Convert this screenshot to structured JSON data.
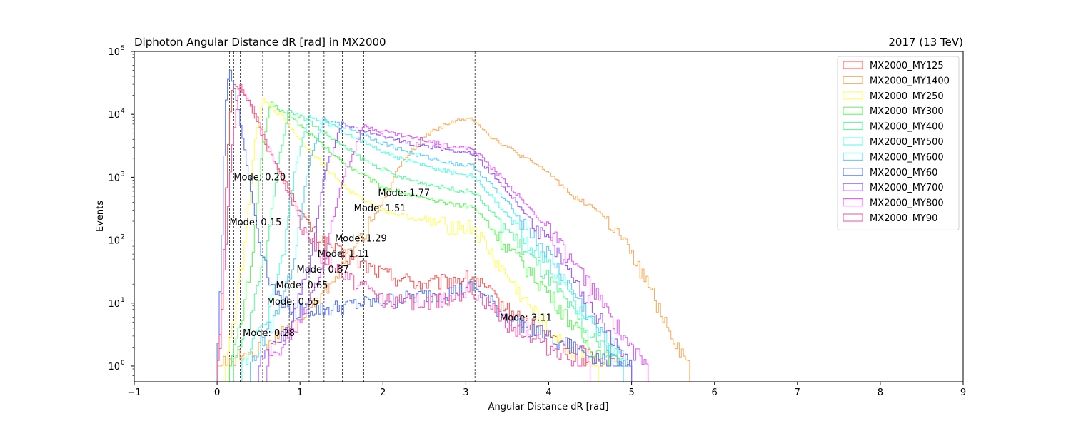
{
  "chart_data": {
    "type": "line",
    "title": "Diphoton Angular Distance dR [rad] in MX2000",
    "subtitle": "2017 (13 TeV)",
    "xlabel": "Angular Distance dR [rad]",
    "ylabel": "Events",
    "xlim": [
      -1,
      9
    ],
    "ylim_log10": [
      -0.25,
      5.0
    ],
    "y_scale": "log",
    "x_ticks": [
      "−1",
      "0",
      "1",
      "2",
      "3",
      "4",
      "5",
      "6",
      "7",
      "8",
      "9"
    ],
    "x_tick_values": [
      -1,
      0,
      1,
      2,
      3,
      4,
      5,
      6,
      7,
      8,
      9
    ],
    "x_extra_tick": "0",
    "y_ticks": [
      {
        "base": "10",
        "exp": "0",
        "value": 1
      },
      {
        "base": "10",
        "exp": "1",
        "value": 10
      },
      {
        "base": "10",
        "exp": "2",
        "value": 100
      },
      {
        "base": "10",
        "exp": "3",
        "value": 1000
      },
      {
        "base": "10",
        "exp": "4",
        "value": 10000
      },
      {
        "base": "10",
        "exp": "5",
        "value": 100000
      }
    ],
    "legend_position": "top-right",
    "series": [
      {
        "name": "MX2000_MY125",
        "color": "#ff5a5a",
        "peak": 0.2,
        "peak_val": 33000,
        "profile": [
          [
            0,
            1
          ],
          [
            0.05,
            3
          ],
          [
            0.1,
            300
          ],
          [
            0.15,
            8000
          ],
          [
            0.2,
            33000
          ],
          [
            0.4,
            15000
          ],
          [
            0.6,
            3000
          ],
          [
            0.8,
            1000
          ],
          [
            1.0,
            300
          ],
          [
            1.2,
            120
          ],
          [
            1.5,
            60
          ],
          [
            2.0,
            30
          ],
          [
            2.5,
            20
          ],
          [
            3.0,
            25
          ],
          [
            3.1,
            25
          ],
          [
            3.5,
            8
          ],
          [
            4.0,
            3
          ],
          [
            4.5,
            1.5
          ],
          [
            5.0,
            1
          ]
        ]
      },
      {
        "name": "MX2000_MY1400",
        "color": "#ffae5a",
        "peak": 3.11,
        "peak_val": 8500,
        "profile": [
          [
            0,
            1
          ],
          [
            0.5,
            2
          ],
          [
            1.0,
            5
          ],
          [
            1.3,
            15
          ],
          [
            1.6,
            60
          ],
          [
            1.8,
            150
          ],
          [
            2.0,
            400
          ],
          [
            2.2,
            1500
          ],
          [
            2.5,
            4500
          ],
          [
            2.8,
            7500
          ],
          [
            3.0,
            8200
          ],
          [
            3.1,
            8500
          ],
          [
            3.3,
            4500
          ],
          [
            3.6,
            2500
          ],
          [
            4.0,
            1200
          ],
          [
            4.3,
            500
          ],
          [
            4.6,
            300
          ],
          [
            4.9,
            100
          ],
          [
            5.2,
            20
          ],
          [
            5.5,
            3
          ],
          [
            5.7,
            1
          ]
        ]
      },
      {
        "name": "MX2000_MY250",
        "color": "#ffff5a",
        "peak": 0.55,
        "peak_val": 17000,
        "profile": [
          [
            0.1,
            1
          ],
          [
            0.2,
            5
          ],
          [
            0.35,
            100
          ],
          [
            0.45,
            3000
          ],
          [
            0.55,
            17000
          ],
          [
            0.8,
            9000
          ],
          [
            1.0,
            4000
          ],
          [
            1.3,
            1500
          ],
          [
            1.6,
            600
          ],
          [
            2.0,
            300
          ],
          [
            2.5,
            200
          ],
          [
            3.0,
            160
          ],
          [
            3.1,
            160
          ],
          [
            3.4,
            40
          ],
          [
            3.8,
            8
          ],
          [
            4.2,
            2
          ],
          [
            4.6,
            1
          ]
        ]
      },
      {
        "name": "MX2000_MY300",
        "color": "#5aff5a",
        "peak": 0.65,
        "peak_val": 15000,
        "profile": [
          [
            0.15,
            1
          ],
          [
            0.3,
            5
          ],
          [
            0.45,
            100
          ],
          [
            0.55,
            3000
          ],
          [
            0.65,
            15000
          ],
          [
            0.9,
            9000
          ],
          [
            1.2,
            4000
          ],
          [
            1.5,
            1800
          ],
          [
            2.0,
            700
          ],
          [
            2.5,
            450
          ],
          [
            3.0,
            350
          ],
          [
            3.1,
            340
          ],
          [
            3.5,
            80
          ],
          [
            4.0,
            15
          ],
          [
            4.5,
            2
          ],
          [
            4.9,
            1
          ]
        ]
      },
      {
        "name": "MX2000_MY400",
        "color": "#5aff9e",
        "peak": 0.87,
        "peak_val": 12000,
        "profile": [
          [
            0.2,
            1
          ],
          [
            0.4,
            5
          ],
          [
            0.6,
            80
          ],
          [
            0.75,
            2000
          ],
          [
            0.87,
            12000
          ],
          [
            1.1,
            8000
          ],
          [
            1.4,
            4000
          ],
          [
            1.8,
            1800
          ],
          [
            2.2,
            1000
          ],
          [
            2.7,
            700
          ],
          [
            3.0,
            600
          ],
          [
            3.1,
            590
          ],
          [
            3.5,
            150
          ],
          [
            4.0,
            25
          ],
          [
            4.5,
            3
          ],
          [
            5.0,
            1
          ]
        ]
      },
      {
        "name": "MX2000_MY500",
        "color": "#5affe8",
        "peak": 1.11,
        "peak_val": 9000,
        "profile": [
          [
            0.3,
            1
          ],
          [
            0.6,
            6
          ],
          [
            0.8,
            60
          ],
          [
            0.95,
            1500
          ],
          [
            1.11,
            9000
          ],
          [
            1.4,
            6500
          ],
          [
            1.8,
            3500
          ],
          [
            2.2,
            2000
          ],
          [
            2.7,
            1300
          ],
          [
            3.0,
            1100
          ],
          [
            3.1,
            1050
          ],
          [
            3.5,
            250
          ],
          [
            4.0,
            40
          ],
          [
            4.5,
            5
          ],
          [
            5.0,
            1
          ]
        ]
      },
      {
        "name": "MX2000_MY600",
        "color": "#5ad2ff",
        "peak": 1.29,
        "peak_val": 8500,
        "profile": [
          [
            0.4,
            1
          ],
          [
            0.7,
            6
          ],
          [
            0.95,
            60
          ],
          [
            1.1,
            1500
          ],
          [
            1.29,
            8500
          ],
          [
            1.6,
            6000
          ],
          [
            2.0,
            3500
          ],
          [
            2.4,
            2300
          ],
          [
            2.8,
            1700
          ],
          [
            3.1,
            1500
          ],
          [
            3.5,
            400
          ],
          [
            4.0,
            60
          ],
          [
            4.5,
            6
          ],
          [
            4.9,
            1
          ]
        ]
      },
      {
        "name": "MX2000_MY60",
        "color": "#5a7aff",
        "peak": 0.15,
        "peak_val": 60000,
        "profile": [
          [
            0,
            1
          ],
          [
            0.05,
            30
          ],
          [
            0.1,
            10000
          ],
          [
            0.15,
            60000
          ],
          [
            0.25,
            15000
          ],
          [
            0.35,
            2000
          ],
          [
            0.45,
            300
          ],
          [
            0.55,
            60
          ],
          [
            0.7,
            15
          ],
          [
            0.9,
            8
          ],
          [
            1.3,
            8
          ],
          [
            1.8,
            10
          ],
          [
            2.3,
            12
          ],
          [
            2.8,
            15
          ],
          [
            3.1,
            18
          ],
          [
            3.5,
            6
          ],
          [
            4.0,
            3
          ],
          [
            4.5,
            1.5
          ],
          [
            5.0,
            1
          ]
        ]
      },
      {
        "name": "MX2000_MY700",
        "color": "#9e5aff",
        "peak": 1.51,
        "peak_val": 7000,
        "profile": [
          [
            0.5,
            1
          ],
          [
            0.9,
            5
          ],
          [
            1.15,
            60
          ],
          [
            1.3,
            1200
          ],
          [
            1.51,
            7000
          ],
          [
            1.8,
            5500
          ],
          [
            2.2,
            3800
          ],
          [
            2.6,
            3000
          ],
          [
            3.0,
            2500
          ],
          [
            3.1,
            2400
          ],
          [
            3.5,
            600
          ],
          [
            4.0,
            100
          ],
          [
            4.5,
            10
          ],
          [
            5.0,
            1
          ]
        ]
      },
      {
        "name": "MX2000_MY800",
        "color": "#e85aff",
        "peak": 1.77,
        "peak_val": 6500,
        "profile": [
          [
            0.6,
            1
          ],
          [
            1.0,
            5
          ],
          [
            1.3,
            50
          ],
          [
            1.5,
            800
          ],
          [
            1.77,
            6500
          ],
          [
            2.0,
            5500
          ],
          [
            2.4,
            4200
          ],
          [
            2.8,
            3200
          ],
          [
            3.1,
            2800
          ],
          [
            3.5,
            800
          ],
          [
            4.0,
            150
          ],
          [
            4.5,
            20
          ],
          [
            5.0,
            2
          ],
          [
            5.2,
            1
          ]
        ]
      },
      {
        "name": "MX2000_MY90",
        "color": "#ff5aae",
        "peak": 0.28,
        "peak_val": 30000,
        "profile": [
          [
            0,
            1
          ],
          [
            0.1,
            50
          ],
          [
            0.18,
            3000
          ],
          [
            0.28,
            30000
          ],
          [
            0.45,
            12000
          ],
          [
            0.65,
            2500
          ],
          [
            0.85,
            600
          ],
          [
            1.05,
            150
          ],
          [
            1.3,
            50
          ],
          [
            1.6,
            25
          ],
          [
            2.0,
            12
          ],
          [
            2.5,
            10
          ],
          [
            3.0,
            15
          ],
          [
            3.1,
            15
          ],
          [
            3.5,
            5
          ],
          [
            4.0,
            2
          ],
          [
            4.5,
            1
          ]
        ]
      }
    ],
    "annotations": [
      {
        "text": "Mode: 0.20",
        "x": 0.2,
        "y": 1000
      },
      {
        "text": "Mode: 1.77",
        "x": 1.94,
        "y": 560
      },
      {
        "text": "Mode: 1.51",
        "x": 1.65,
        "y": 320
      },
      {
        "text": "Mode: 0.15",
        "x": 0.15,
        "y": 190
      },
      {
        "text": "Mode: 1.29",
        "x": 1.42,
        "y": 105
      },
      {
        "text": "Mode: 1.11",
        "x": 1.21,
        "y": 60
      },
      {
        "text": "Mode: 0.87",
        "x": 0.96,
        "y": 34
      },
      {
        "text": "Mode: 0.65",
        "x": 0.71,
        "y": 19
      },
      {
        "text": "Mode: 0.55",
        "x": 0.6,
        "y": 10.5
      },
      {
        "text": "Mode: 3.11",
        "x": 3.41,
        "y": 5.8
      },
      {
        "text": "Mode: 0.28",
        "x": 0.31,
        "y": 3.3
      }
    ],
    "mode_lines": [
      0.15,
      0.2,
      0.28,
      0.55,
      0.65,
      0.87,
      1.11,
      1.29,
      1.51,
      1.77,
      3.11
    ]
  }
}
